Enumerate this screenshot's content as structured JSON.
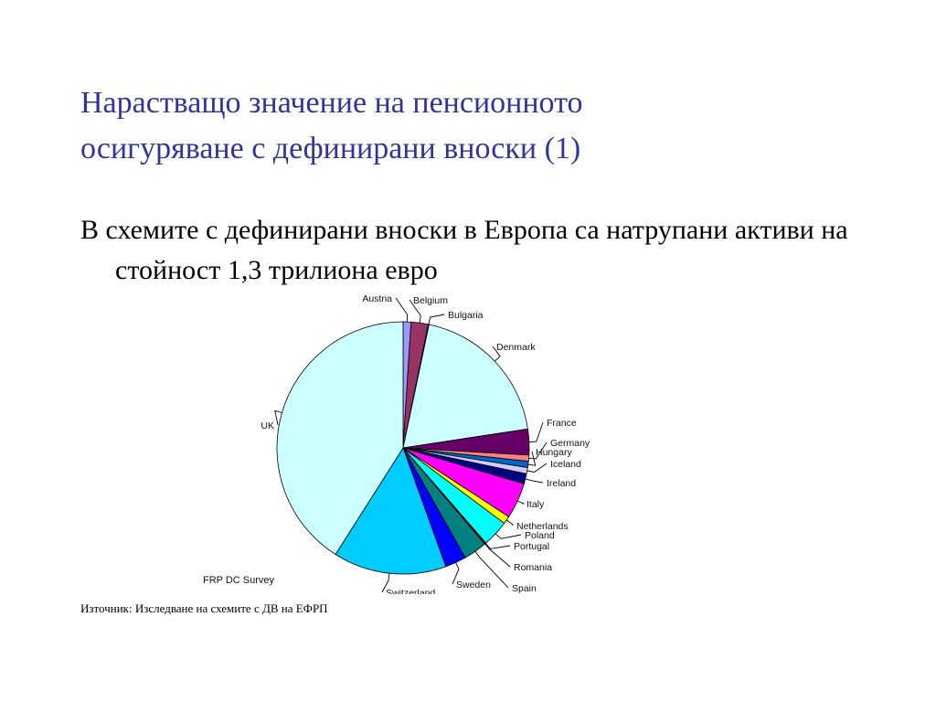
{
  "title_line1": "Нарастващо значение на пенсионното",
  "title_line2": "осигуряване с дефинирани вноски (1)",
  "bullet_text": "В схемите с дефинирани вноски в Европа са натрупани активи на стойност 1,3 трилиона евро",
  "source_text": "Източник: Изследване на схемите с ДВ на ЕФРП",
  "chart_data": {
    "type": "pie",
    "title": "",
    "caption": "FRP DC Survey",
    "slices": [
      {
        "label": "Austria",
        "value": 1.0,
        "color": "#9999ff"
      },
      {
        "label": "Belgium",
        "value": 2.2,
        "color": "#993366"
      },
      {
        "label": "Bulgaria",
        "value": 0.1,
        "color": "#ffffcc"
      },
      {
        "label": "Denmark",
        "value": 19.3,
        "color": "#ccffff"
      },
      {
        "label": "France",
        "value": 3.3,
        "color": "#660066"
      },
      {
        "label": "Germany",
        "value": 0.8,
        "color": "#ff8080"
      },
      {
        "label": "Hungary",
        "value": 0.8,
        "color": "#0066cc"
      },
      {
        "label": "Iceland",
        "value": 0.8,
        "color": "#ccccff"
      },
      {
        "label": "Ireland",
        "value": 1.3,
        "color": "#000080"
      },
      {
        "label": "Italy",
        "value": 4.6,
        "color": "#ff00ff"
      },
      {
        "label": "Netherlands",
        "value": 1.0,
        "color": "#ffff00"
      },
      {
        "label": "Poland",
        "value": 3.4,
        "color": "#00ffff"
      },
      {
        "label": "Portugal",
        "value": 0.1,
        "color": "#800080"
      },
      {
        "label": "Romania",
        "value": 0.1,
        "color": "#800000"
      },
      {
        "label": "Spain",
        "value": 3.0,
        "color": "#008080"
      },
      {
        "label": "Sweden",
        "value": 2.7,
        "color": "#0000ff"
      },
      {
        "label": "Switzerland",
        "value": 14.5,
        "color": "#00ccff"
      },
      {
        "label": "UK",
        "value": 41.0,
        "color": "#ccffff"
      }
    ]
  }
}
